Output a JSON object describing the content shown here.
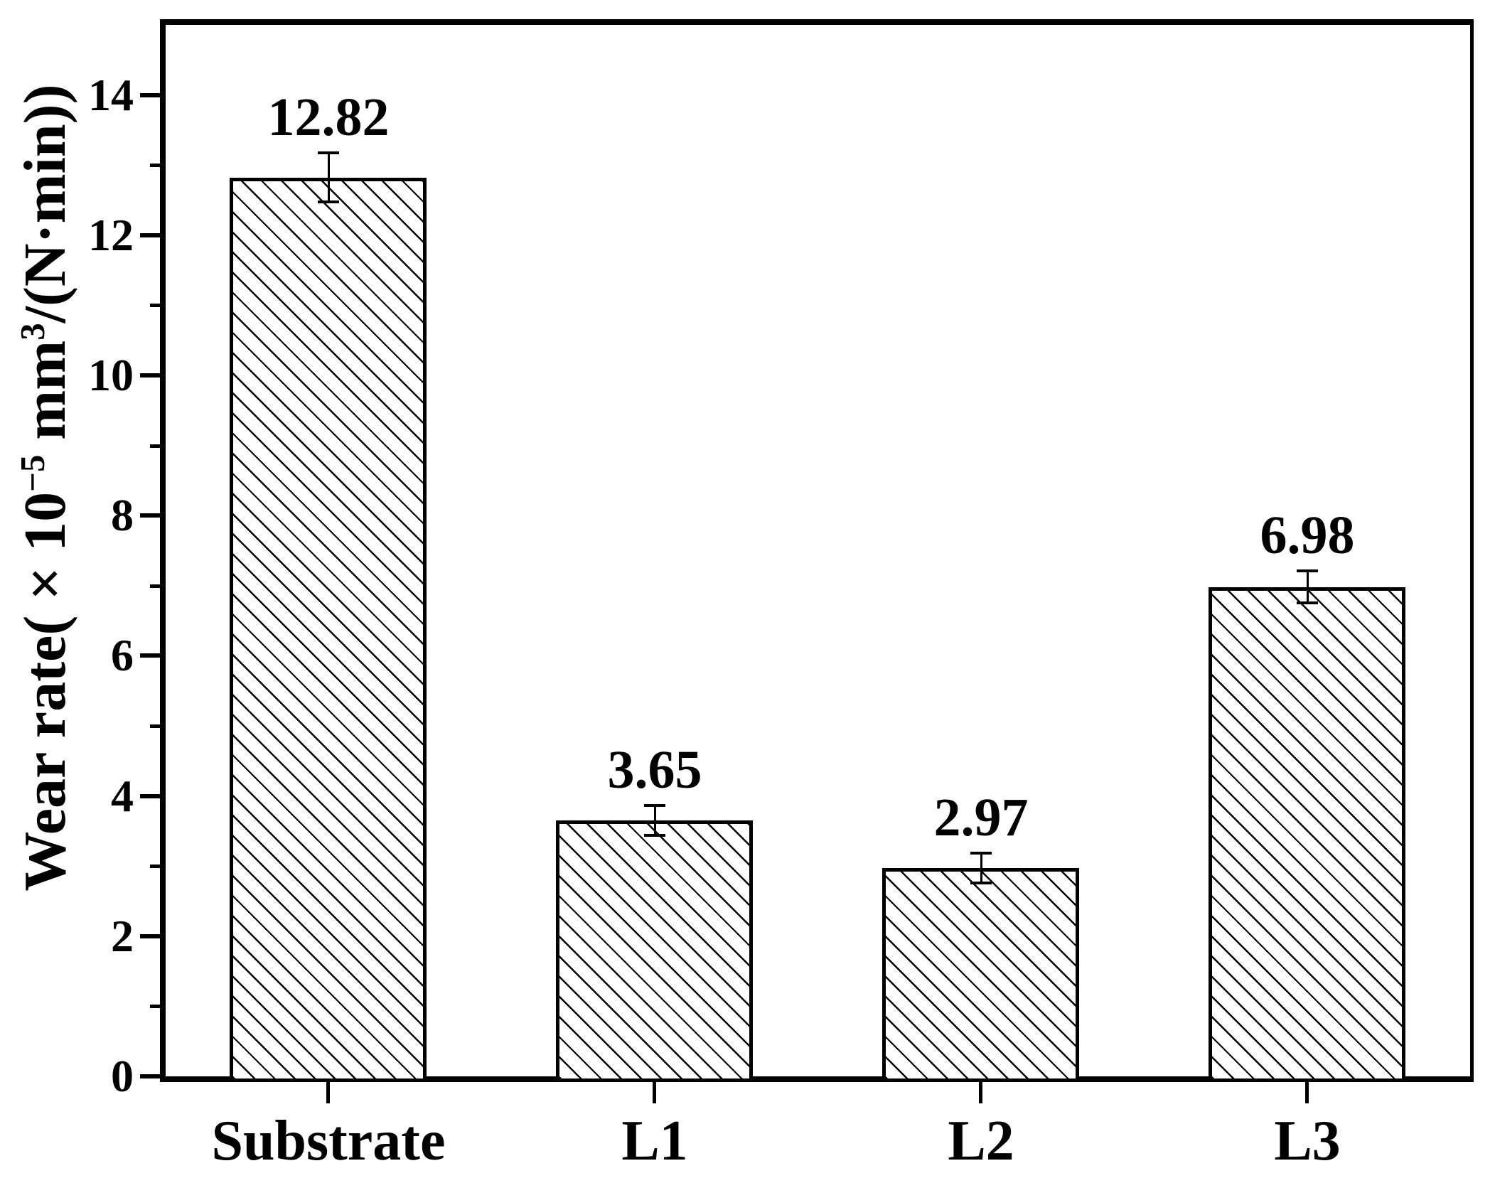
{
  "colors": {
    "foreground": "#000000",
    "background": "#ffffff"
  },
  "chart_data": {
    "type": "bar",
    "title": "",
    "categories": [
      "Substrate",
      "L1",
      "L2",
      "L3"
    ],
    "values": [
      12.82,
      3.65,
      2.97,
      6.98
    ],
    "value_labels": [
      "12.82",
      "3.65",
      "2.97",
      "6.98"
    ],
    "errors": [
      0.35,
      0.21,
      0.21,
      0.23
    ],
    "xlabel": "",
    "ylabel": "Wear rate( × 10⁻⁵ mm³/(N·min))",
    "ylabel_parts": [
      "Wear rate( × 10",
      "−5",
      " mm",
      "3",
      "/(N·min))"
    ],
    "ylim": [
      0,
      15
    ],
    "yticks": [
      0,
      2,
      4,
      6,
      8,
      10,
      12,
      14
    ],
    "yminorticks": [
      1,
      3,
      5,
      7,
      9,
      11,
      13
    ],
    "bar_fill": "#ffffff",
    "bar_hatch": "diagonal-down",
    "line_color": "#000000",
    "grid": "off",
    "legend_position": "none"
  }
}
